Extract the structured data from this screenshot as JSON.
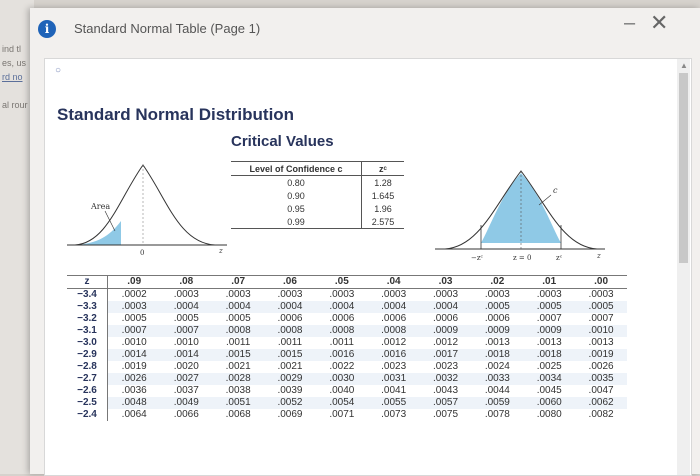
{
  "background": {
    "fragments": [
      "ind tl",
      "es, us",
      "rd no",
      "al rour"
    ]
  },
  "window": {
    "title": "Standard Normal Table (Page 1)",
    "info_icon": "info-icon",
    "min_label": "–",
    "close_label": "✕"
  },
  "document": {
    "heading": "Standard Normal Distribution",
    "subheading": "Critical Values",
    "level_table": {
      "headers": [
        "Level of Confidence c",
        "zᶜ"
      ],
      "rows": [
        [
          "0.80",
          "1.28"
        ],
        [
          "0.90",
          "1.645"
        ],
        [
          "0.95",
          "1.96"
        ],
        [
          "0.99",
          "2.575"
        ]
      ]
    },
    "left_curve": {
      "area_label": "Area",
      "zero_label": "0",
      "z_label": "z",
      "shaded_side": "left"
    },
    "right_curve": {
      "c_label": "c",
      "neg_zc_label": "−zᶜ",
      "zero_label": "z = 0",
      "pos_zc_label": "zᶜ",
      "z_label": "z",
      "shaded_side": "middle"
    },
    "z_table": {
      "headers": [
        "z",
        ".09",
        ".08",
        ".07",
        ".06",
        ".05",
        ".04",
        ".03",
        ".02",
        ".01",
        ".00"
      ],
      "rows": [
        [
          "−3.4",
          ".0002",
          ".0003",
          ".0003",
          ".0003",
          ".0003",
          ".0003",
          ".0003",
          ".0003",
          ".0003",
          ".0003"
        ],
        [
          "−3.3",
          ".0003",
          ".0004",
          ".0004",
          ".0004",
          ".0004",
          ".0004",
          ".0004",
          ".0005",
          ".0005",
          ".0005"
        ],
        [
          "−3.2",
          ".0005",
          ".0005",
          ".0005",
          ".0006",
          ".0006",
          ".0006",
          ".0006",
          ".0006",
          ".0007",
          ".0007"
        ],
        [
          "−3.1",
          ".0007",
          ".0007",
          ".0008",
          ".0008",
          ".0008",
          ".0008",
          ".0009",
          ".0009",
          ".0009",
          ".0010"
        ],
        [
          "−3.0",
          ".0010",
          ".0010",
          ".0011",
          ".0011",
          ".0011",
          ".0012",
          ".0012",
          ".0013",
          ".0013",
          ".0013"
        ],
        [
          "−2.9",
          ".0014",
          ".0014",
          ".0015",
          ".0015",
          ".0016",
          ".0016",
          ".0017",
          ".0018",
          ".0018",
          ".0019"
        ],
        [
          "−2.8",
          ".0019",
          ".0020",
          ".0021",
          ".0021",
          ".0022",
          ".0023",
          ".0023",
          ".0024",
          ".0025",
          ".0026"
        ],
        [
          "−2.7",
          ".0026",
          ".0027",
          ".0028",
          ".0029",
          ".0030",
          ".0031",
          ".0032",
          ".0033",
          ".0034",
          ".0035"
        ],
        [
          "−2.6",
          ".0036",
          ".0037",
          ".0038",
          ".0039",
          ".0040",
          ".0041",
          ".0043",
          ".0044",
          ".0045",
          ".0047"
        ],
        [
          "−2.5",
          ".0048",
          ".0049",
          ".0051",
          ".0052",
          ".0054",
          ".0055",
          ".0057",
          ".0059",
          ".0060",
          ".0062"
        ],
        [
          "−2.4",
          ".0064",
          ".0066",
          ".0068",
          ".0069",
          ".0071",
          ".0073",
          ".0075",
          ".0078",
          ".0080",
          ".0082"
        ]
      ]
    },
    "colors": {
      "heading": "#28345c",
      "shade": "#8fc9e6",
      "stripe": "#eef3f9"
    }
  }
}
